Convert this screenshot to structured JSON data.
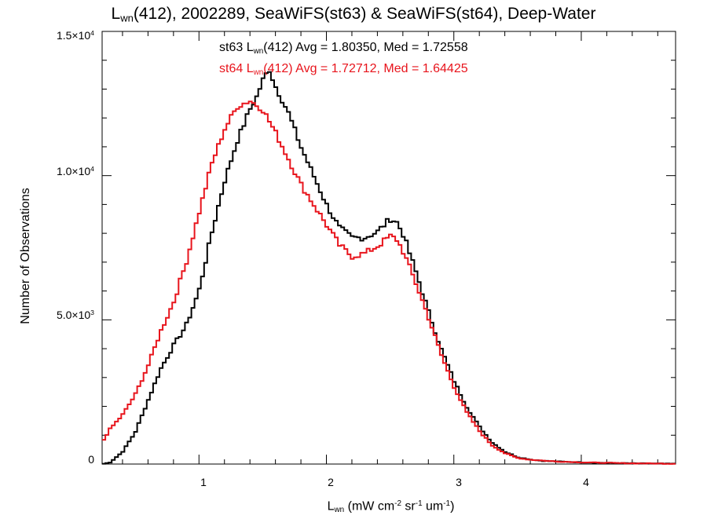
{
  "chart_data": {
    "type": "line",
    "title": {
      "sym": "L",
      "sub": "wn",
      "rest": "(412), 2002289, SeaWiFS(st63) & SeaWiFS(st64), Deep-Water"
    },
    "xlabel": {
      "sym": "L",
      "sub": "wn",
      "unit_open": " (mW cm",
      "sup1": "-2",
      "unit_mid": " sr",
      "sup2": "-1",
      "unit_mid2": " um",
      "sup3": "-1",
      "unit_close": ")"
    },
    "ylabel": "Number of Observations",
    "xlim": [
      0.24,
      4.74
    ],
    "ylim": [
      0,
      15000
    ],
    "x_ticks": [
      {
        "value": 1,
        "label": "1"
      },
      {
        "value": 2,
        "label": "2"
      },
      {
        "value": 3,
        "label": "3"
      },
      {
        "value": 4,
        "label": "4"
      }
    ],
    "y_ticks": [
      {
        "value": 0,
        "mant": "0",
        "exp": ""
      },
      {
        "value": 5000,
        "mant": "5.0×10",
        "exp": "3"
      },
      {
        "value": 10000,
        "mant": "1.0×10",
        "exp": "4"
      },
      {
        "value": 15000,
        "mant": "1.5×10",
        "exp": "4"
      }
    ],
    "series": [
      {
        "name": "st63",
        "color": "#000000",
        "stats": {
          "pre": "st63 L",
          "sub": "wn",
          "post": "(412) Avg = 1.80350, Med = 1.72558"
        },
        "points": [
          [
            0.24,
            0
          ],
          [
            0.3,
            50
          ],
          [
            0.4,
            420
          ],
          [
            0.5,
            1100
          ],
          [
            0.6,
            2200
          ],
          [
            0.7,
            3300
          ],
          [
            0.8,
            4100
          ],
          [
            0.9,
            4800
          ],
          [
            1.0,
            6000
          ],
          [
            1.1,
            8000
          ],
          [
            1.2,
            9800
          ],
          [
            1.3,
            11200
          ],
          [
            1.4,
            12300
          ],
          [
            1.45,
            12700
          ],
          [
            1.5,
            13300
          ],
          [
            1.55,
            13700
          ],
          [
            1.6,
            13100
          ],
          [
            1.7,
            12200
          ],
          [
            1.8,
            11000
          ],
          [
            1.9,
            10000
          ],
          [
            2.0,
            9000
          ],
          [
            2.1,
            8200
          ],
          [
            2.2,
            7850
          ],
          [
            2.3,
            7850
          ],
          [
            2.4,
            8050
          ],
          [
            2.5,
            8500
          ],
          [
            2.55,
            8400
          ],
          [
            2.6,
            8000
          ],
          [
            2.7,
            6700
          ],
          [
            2.8,
            5300
          ],
          [
            2.9,
            4000
          ],
          [
            3.0,
            2900
          ],
          [
            3.1,
            2000
          ],
          [
            3.2,
            1300
          ],
          [
            3.3,
            750
          ],
          [
            3.4,
            430
          ],
          [
            3.5,
            240
          ],
          [
            3.6,
            160
          ],
          [
            3.7,
            110
          ],
          [
            3.8,
            90
          ],
          [
            4.0,
            60
          ],
          [
            4.2,
            40
          ],
          [
            4.4,
            25
          ],
          [
            4.74,
            10
          ]
        ]
      },
      {
        "name": "st64",
        "color": "#e8141c",
        "stats": {
          "pre": "st64 L",
          "sub": "wn",
          "post": "(412) Avg = 1.72712, Med = 1.64425"
        },
        "points": [
          [
            0.24,
            750
          ],
          [
            0.3,
            1200
          ],
          [
            0.4,
            1700
          ],
          [
            0.5,
            2400
          ],
          [
            0.6,
            3400
          ],
          [
            0.7,
            4600
          ],
          [
            0.8,
            5600
          ],
          [
            0.9,
            7000
          ],
          [
            1.0,
            8700
          ],
          [
            1.1,
            10400
          ],
          [
            1.2,
            11600
          ],
          [
            1.3,
            12400
          ],
          [
            1.4,
            12600
          ],
          [
            1.5,
            12300
          ],
          [
            1.6,
            11500
          ],
          [
            1.7,
            10600
          ],
          [
            1.8,
            9700
          ],
          [
            1.9,
            9000
          ],
          [
            2.0,
            8300
          ],
          [
            2.1,
            7600
          ],
          [
            2.2,
            7200
          ],
          [
            2.3,
            7300
          ],
          [
            2.4,
            7550
          ],
          [
            2.5,
            7900
          ],
          [
            2.55,
            7800
          ],
          [
            2.6,
            7400
          ],
          [
            2.7,
            6300
          ],
          [
            2.8,
            5100
          ],
          [
            2.9,
            3800
          ],
          [
            3.0,
            2700
          ],
          [
            3.1,
            1800
          ],
          [
            3.2,
            1150
          ],
          [
            3.3,
            650
          ],
          [
            3.4,
            380
          ],
          [
            3.5,
            210
          ],
          [
            3.6,
            150
          ],
          [
            3.7,
            120
          ],
          [
            3.8,
            90
          ],
          [
            4.0,
            60
          ],
          [
            4.2,
            40
          ],
          [
            4.4,
            25
          ],
          [
            4.74,
            10
          ]
        ]
      }
    ],
    "grid": false,
    "legend": "none"
  }
}
